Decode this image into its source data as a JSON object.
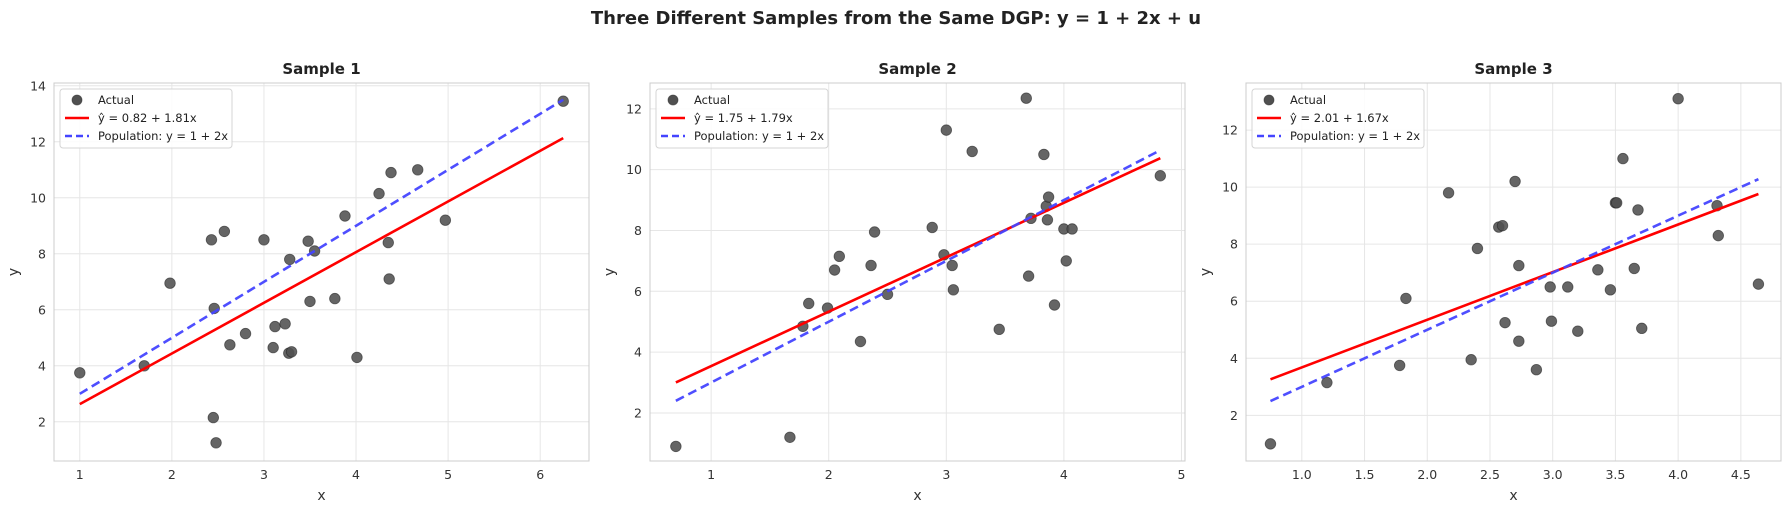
{
  "suptitle": "Three Different Samples from the Same DGP: y = 1 + 2x + u",
  "colors": {
    "actual": "#505050",
    "fit": "#ff0000",
    "population": "#4444ff",
    "grid": "#e6e6e6",
    "spine": "#cccccc"
  },
  "chart_data": [
    {
      "type": "scatter",
      "title": "Sample 1",
      "xlabel": "x",
      "ylabel": "y",
      "xlim": [
        0.72,
        6.53
      ],
      "ylim": [
        0.6,
        14.1
      ],
      "xticks": [
        1,
        2,
        3,
        4,
        5,
        6
      ],
      "xtick_labels": [
        "1",
        "2",
        "3",
        "4",
        "5",
        "6"
      ],
      "yticks": [
        2,
        4,
        6,
        8,
        10,
        12,
        14
      ],
      "ytick_labels": [
        "2",
        "4",
        "6",
        "8",
        "10",
        "12",
        "14"
      ],
      "legend": [
        "Actual",
        "ŷ = 0.82 + 1.81x",
        "Population: y = 1 + 2x"
      ],
      "fit": {
        "intercept": 0.82,
        "slope": 1.81
      },
      "population": {
        "intercept": 1,
        "slope": 2
      },
      "line_x": [
        1.0,
        6.25
      ],
      "points": [
        [
          1.0,
          3.75
        ],
        [
          1.7,
          4.0
        ],
        [
          1.98,
          6.95
        ],
        [
          2.43,
          8.5
        ],
        [
          2.46,
          6.05
        ],
        [
          2.45,
          2.15
        ],
        [
          2.48,
          1.25
        ],
        [
          2.57,
          8.8
        ],
        [
          2.63,
          4.75
        ],
        [
          2.8,
          5.15
        ],
        [
          3.0,
          8.5
        ],
        [
          3.1,
          4.65
        ],
        [
          3.12,
          5.4
        ],
        [
          3.23,
          5.5
        ],
        [
          3.28,
          7.8
        ],
        [
          3.27,
          4.45
        ],
        [
          3.3,
          4.5
        ],
        [
          3.48,
          8.45
        ],
        [
          3.5,
          6.3
        ],
        [
          3.55,
          8.1
        ],
        [
          3.77,
          6.4
        ],
        [
          3.88,
          9.35
        ],
        [
          4.01,
          4.3
        ],
        [
          4.25,
          10.15
        ],
        [
          4.35,
          8.4
        ],
        [
          4.36,
          7.1
        ],
        [
          4.38,
          10.9
        ],
        [
          4.67,
          11.0
        ],
        [
          4.97,
          9.2
        ],
        [
          6.25,
          13.45
        ]
      ]
    },
    {
      "type": "scatter",
      "title": "Sample 2",
      "xlabel": "x",
      "ylabel": "y",
      "xlim": [
        0.48,
        5.03
      ],
      "ylim": [
        0.42,
        12.85
      ],
      "xticks": [
        1,
        2,
        3,
        4,
        5
      ],
      "xtick_labels": [
        "1",
        "2",
        "3",
        "4",
        "5"
      ],
      "yticks": [
        2,
        4,
        6,
        8,
        10,
        12
      ],
      "ytick_labels": [
        "2",
        "4",
        "6",
        "8",
        "10",
        "12"
      ],
      "legend": [
        "Actual",
        "ŷ = 1.75 + 1.79x",
        "Population: y = 1 + 2x"
      ],
      "fit": {
        "intercept": 1.75,
        "slope": 1.79
      },
      "population": {
        "intercept": 1,
        "slope": 2
      },
      "line_x": [
        0.7,
        4.82
      ],
      "points": [
        [
          0.7,
          0.9
        ],
        [
          1.67,
          1.2
        ],
        [
          1.78,
          4.85
        ],
        [
          1.83,
          5.6
        ],
        [
          1.99,
          5.45
        ],
        [
          2.05,
          6.7
        ],
        [
          2.09,
          7.15
        ],
        [
          2.27,
          4.35
        ],
        [
          2.36,
          6.85
        ],
        [
          2.39,
          7.95
        ],
        [
          2.5,
          5.9
        ],
        [
          2.88,
          8.1
        ],
        [
          2.98,
          7.2
        ],
        [
          3.0,
          11.3
        ],
        [
          3.05,
          6.85
        ],
        [
          3.06,
          6.05
        ],
        [
          3.22,
          10.6
        ],
        [
          3.45,
          4.75
        ],
        [
          3.68,
          12.35
        ],
        [
          3.7,
          6.5
        ],
        [
          3.72,
          8.4
        ],
        [
          3.83,
          10.5
        ],
        [
          3.85,
          8.8
        ],
        [
          3.87,
          9.1
        ],
        [
          3.86,
          8.35
        ],
        [
          3.92,
          5.55
        ],
        [
          4.0,
          8.05
        ],
        [
          4.02,
          7.0
        ],
        [
          4.07,
          8.05
        ],
        [
          4.82,
          9.8
        ]
      ]
    },
    {
      "type": "scatter",
      "title": "Sample 3",
      "xlabel": "x",
      "ylabel": "y",
      "xlim": [
        0.555,
        4.82
      ],
      "ylim": [
        0.4,
        13.65
      ],
      "xticks": [
        1.0,
        1.5,
        2.0,
        2.5,
        3.0,
        3.5,
        4.0,
        4.5
      ],
      "xtick_labels": [
        "1.0",
        "1.5",
        "2.0",
        "2.5",
        "3.0",
        "3.5",
        "4.0",
        "4.5"
      ],
      "yticks": [
        2,
        4,
        6,
        8,
        10,
        12
      ],
      "ytick_labels": [
        "2",
        "4",
        "6",
        "8",
        "10",
        "12"
      ],
      "legend": [
        "Actual",
        "ŷ = 2.01 + 1.67x",
        "Population: y = 1 + 2x"
      ],
      "fit": {
        "intercept": 2.01,
        "slope": 1.67
      },
      "population": {
        "intercept": 1,
        "slope": 2
      },
      "line_x": [
        0.75,
        4.64
      ],
      "points": [
        [
          0.75,
          1.0
        ],
        [
          1.2,
          3.15
        ],
        [
          1.78,
          3.75
        ],
        [
          1.83,
          6.1
        ],
        [
          2.17,
          9.8
        ],
        [
          2.35,
          3.95
        ],
        [
          2.4,
          7.85
        ],
        [
          2.57,
          8.6
        ],
        [
          2.6,
          8.65
        ],
        [
          2.62,
          5.25
        ],
        [
          2.7,
          10.2
        ],
        [
          2.73,
          7.25
        ],
        [
          2.73,
          4.6
        ],
        [
          2.87,
          3.6
        ],
        [
          2.98,
          6.5
        ],
        [
          2.99,
          5.3
        ],
        [
          3.12,
          6.5
        ],
        [
          3.2,
          4.95
        ],
        [
          3.36,
          7.1
        ],
        [
          3.46,
          6.4
        ],
        [
          3.5,
          9.45
        ],
        [
          3.51,
          9.45
        ],
        [
          3.56,
          11.0
        ],
        [
          3.65,
          7.15
        ],
        [
          3.68,
          9.2
        ],
        [
          3.71,
          5.05
        ],
        [
          4.0,
          13.1
        ],
        [
          4.31,
          9.35
        ],
        [
          4.32,
          8.3
        ],
        [
          4.64,
          6.6
        ]
      ]
    }
  ]
}
